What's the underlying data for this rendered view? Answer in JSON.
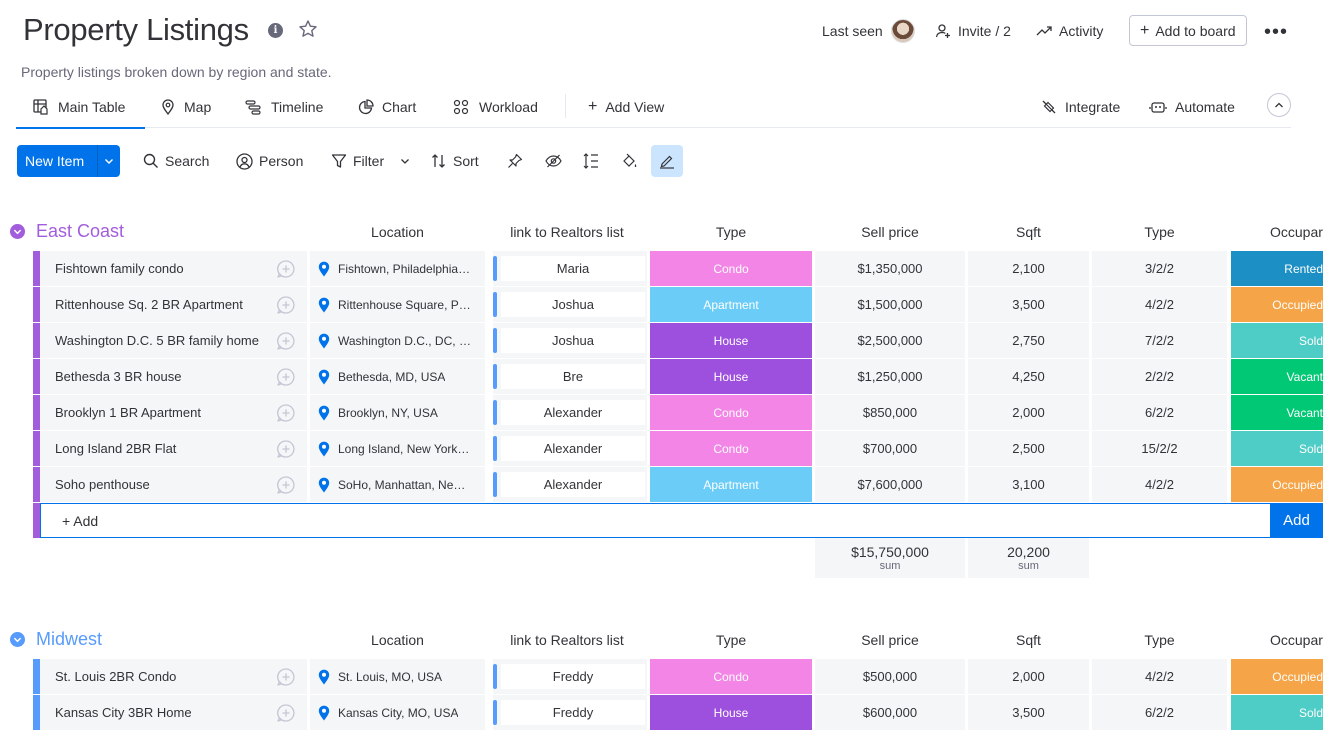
{
  "header": {
    "title": "Property Listings",
    "subtitle": "Property listings broken down by region and state.",
    "last_seen_label": "Last seen",
    "invite_label": "Invite / 2",
    "activity_label": "Activity",
    "add_to_board_label": "Add to board"
  },
  "tabs": [
    {
      "label": "Main Table",
      "icon": "table-icon",
      "active": true
    },
    {
      "label": "Map",
      "icon": "map-pin-icon"
    },
    {
      "label": "Timeline",
      "icon": "timeline-icon"
    },
    {
      "label": "Chart",
      "icon": "pie-chart-icon"
    },
    {
      "label": "Workload",
      "icon": "workload-icon"
    },
    {
      "label": "Add View",
      "icon": "plus-icon"
    }
  ],
  "tabs_right": {
    "integrate_label": "Integrate",
    "automate_label": "Automate"
  },
  "toolbar": {
    "new_item_label": "New Item",
    "search_label": "Search",
    "person_label": "Person",
    "filter_label": "Filter",
    "sort_label": "Sort"
  },
  "columns": {
    "location": "Location",
    "link": "link to Realtors list",
    "type": "Type",
    "price": "Sell price",
    "sqft": "Sqft",
    "rooms": "Type",
    "occupancy": "Occupar"
  },
  "colors": {
    "east_coast": "#a25ddc",
    "midwest": "#579bfc",
    "condo": "#f285e6",
    "apartment": "#6bcdf7",
    "house": "#9d50dd",
    "rented": "#1c8fc4",
    "occupied": "#f5a447",
    "sold": "#4eccc6",
    "vacant": "#00c875",
    "primary": "#0073ea"
  },
  "groups": [
    {
      "name": "East Coast",
      "add_label": "+ Add",
      "add_button_label": "Add",
      "sum_price": "$15,750,000",
      "sum_sqft": "20,200",
      "sum_label": "sum",
      "rows": [
        {
          "name": "Fishtown family condo",
          "location": "Fishtown, Philadelphia, PA, USA",
          "realtor": "Maria",
          "type": "Condo",
          "type_color": "condo",
          "price": "$1,350,000",
          "sqft": "2,100",
          "rooms": "3/2/2",
          "occupancy": "Rented",
          "occ_color": "rented"
        },
        {
          "name": "Rittenhouse Sq. 2 BR Apartment",
          "location": "Rittenhouse Square, Philadelphia, PA, USA",
          "realtor": "Joshua",
          "type": "Apartment",
          "type_color": "apartment",
          "price": "$1,500,000",
          "sqft": "3,500",
          "rooms": "4/2/2",
          "occupancy": "Occupied",
          "occ_color": "occupied"
        },
        {
          "name": "Washington D.C. 5 BR family home",
          "location": "Washington D.C., DC, USA",
          "realtor": "Joshua",
          "type": "House",
          "type_color": "house",
          "price": "$2,500,000",
          "sqft": "2,750",
          "rooms": "7/2/2",
          "occupancy": "Sold",
          "occ_color": "sold"
        },
        {
          "name": "Bethesda 3 BR house",
          "location": "Bethesda, MD, USA",
          "realtor": "Bre",
          "type": "House",
          "type_color": "house",
          "price": "$1,250,000",
          "sqft": "4,250",
          "rooms": "2/2/2",
          "occupancy": "Vacant",
          "occ_color": "vacant"
        },
        {
          "name": "Brooklyn 1 BR Apartment",
          "location": "Brooklyn, NY, USA",
          "realtor": "Alexander",
          "type": "Condo",
          "type_color": "condo",
          "price": "$850,000",
          "sqft": "2,000",
          "rooms": "6/2/2",
          "occupancy": "Vacant",
          "occ_color": "vacant"
        },
        {
          "name": "Long Island 2BR Flat",
          "location": "Long Island, New York, NY, USA",
          "realtor": "Alexander",
          "type": "Condo",
          "type_color": "condo",
          "price": "$700,000",
          "sqft": "2,500",
          "rooms": "15/2/2",
          "occupancy": "Sold",
          "occ_color": "sold"
        },
        {
          "name": "Soho penthouse",
          "location": "SoHo, Manhattan, New York, NY, USA",
          "realtor": "Alexander",
          "type": "Apartment",
          "type_color": "apartment",
          "price": "$7,600,000",
          "sqft": "3,100",
          "rooms": "4/2/2",
          "occupancy": "Occupied",
          "occ_color": "occupied"
        }
      ]
    },
    {
      "name": "Midwest",
      "rows": [
        {
          "name": "St. Louis 2BR Condo",
          "location": "St. Louis, MO, USA",
          "realtor": "Freddy",
          "type": "Condo",
          "type_color": "condo",
          "price": "$500,000",
          "sqft": "2,000",
          "rooms": "4/2/2",
          "occupancy": "Occupied",
          "occ_color": "occupied"
        },
        {
          "name": "Kansas City 3BR Home",
          "location": "Kansas City, MO, USA",
          "realtor": "Freddy",
          "type": "House",
          "type_color": "house",
          "price": "$600,000",
          "sqft": "3,500",
          "rooms": "6/2/2",
          "occupancy": "Sold",
          "occ_color": "sold"
        }
      ]
    }
  ]
}
